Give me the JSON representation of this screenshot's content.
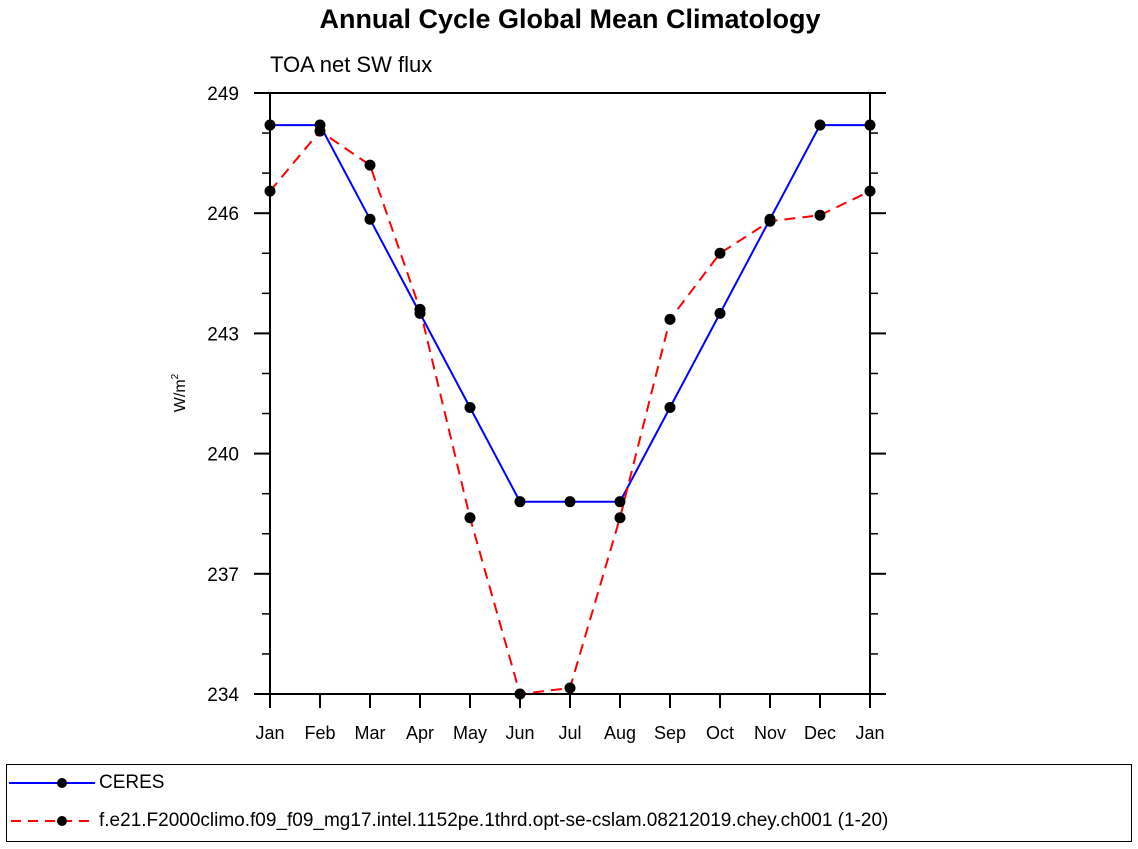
{
  "chart_data": {
    "type": "line",
    "title": "Annual Cycle Global Mean Climatology",
    "subtitle": "TOA net SW flux",
    "xlabel": "",
    "ylabel": "W/m",
    "ylabel_superscript": "2",
    "categories": [
      "Jan",
      "Feb",
      "Mar",
      "Apr",
      "May",
      "Jun",
      "Jul",
      "Aug",
      "Sep",
      "Oct",
      "Nov",
      "Dec",
      "Jan"
    ],
    "ylim": [
      234,
      249
    ],
    "yticks": [
      234,
      237,
      240,
      243,
      246,
      249
    ],
    "yticks_labels": [
      "234",
      "237",
      "240",
      "243",
      "246",
      "249"
    ],
    "grid": false,
    "legend_position": "bottom",
    "series": [
      {
        "name": "CERES",
        "color": "#0000ff",
        "dash": "solid",
        "values": [
          248.2,
          248.2,
          245.85,
          243.5,
          241.15,
          238.8,
          238.8,
          238.8,
          241.15,
          243.5,
          245.85,
          248.2,
          248.2
        ]
      },
      {
        "name": "f.e21.F2000climo.f09_f09_mg17.intel.1152pe.1thrd.opt-se-cslam.08212019.chey.ch001 (1-20)",
        "color": "#ff0000",
        "dash": "dashed",
        "values": [
          246.55,
          248.05,
          247.2,
          243.6,
          238.4,
          234.0,
          234.15,
          238.4,
          243.35,
          245.0,
          245.8,
          245.95,
          246.55
        ]
      }
    ]
  }
}
